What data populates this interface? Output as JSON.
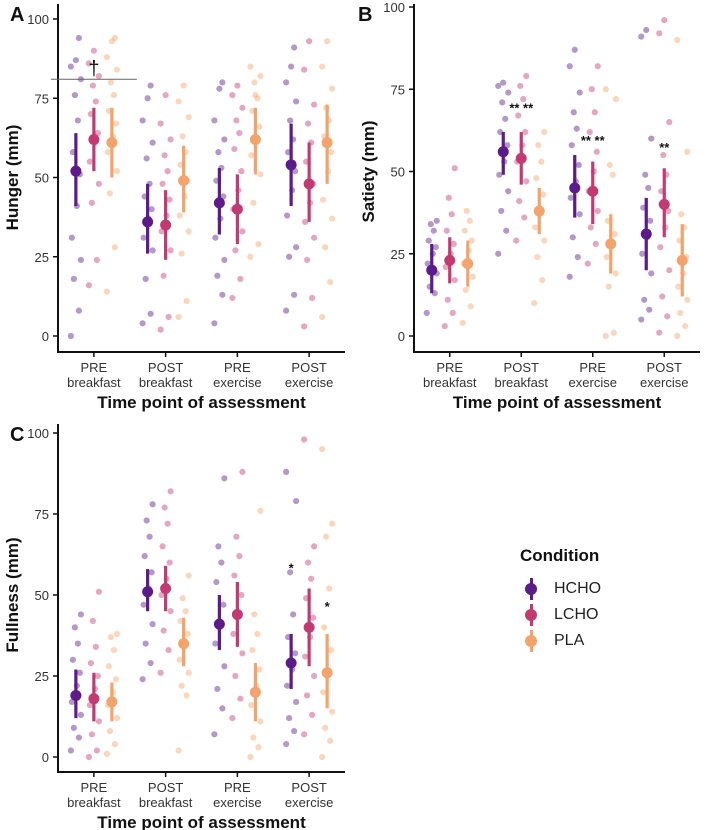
{
  "chart_data": [
    {
      "type": "scatter",
      "panel_label": "A",
      "title": "",
      "xlabel": "Time point of assessment",
      "ylabel": "Hunger (mm)",
      "ylim": [
        0,
        100
      ],
      "yticks": [
        "0",
        "25",
        "50",
        "75",
        "100"
      ],
      "categories": [
        [
          "PRE",
          "breakfast"
        ],
        [
          "POST",
          "breakfast"
        ],
        [
          "PRE",
          "exercise"
        ],
        [
          "POST",
          "exercise"
        ]
      ],
      "series": [
        {
          "name": "HCHO",
          "mean": [
            52,
            36,
            42,
            54
          ],
          "ci_low": [
            41,
            26,
            32,
            41
          ],
          "ci_high": [
            64,
            48,
            53,
            67
          ],
          "points": [
            [
              0,
              8,
              18,
              24,
              31,
              41,
              51,
              58,
              68,
              76,
              81,
              85,
              87,
              94
            ],
            [
              4,
              7,
              18,
              27,
              31,
              37,
              40,
              44,
              48,
              56,
              61,
              68,
              75,
              79
            ],
            [
              4,
              13,
              19,
              24,
              31,
              37,
              44,
              49,
              53,
              58,
              62,
              68,
              78,
              80
            ],
            [
              8,
              13,
              25,
              28,
              38,
              46,
              52,
              58,
              62,
              68,
              74,
              80,
              85,
              91
            ]
          ]
        },
        {
          "name": "LCHO",
          "mean": [
            62,
            35,
            40,
            48
          ],
          "ci_low": [
            52,
            24,
            29,
            36
          ],
          "ci_high": [
            72,
            46,
            51,
            61
          ],
          "points": [
            [
              16,
              24,
              42,
              48,
              55,
              61,
              64,
              70,
              74,
              79,
              82,
              86,
              90
            ],
            [
              2,
              6,
              19,
              27,
              33,
              38,
              43,
              48,
              52,
              57,
              62,
              67,
              76
            ],
            [
              12,
              18,
              27,
              33,
              40,
              46,
              52,
              59,
              64,
              68,
              72,
              76,
              79
            ],
            [
              3,
              12,
              24,
              31,
              36,
              42,
              48,
              55,
              61,
              67,
              73,
              84,
              93
            ]
          ]
        },
        {
          "name": "PLA",
          "mean": [
            61,
            49,
            62,
            61
          ],
          "ci_low": [
            50,
            39,
            51,
            48
          ],
          "ci_high": [
            72,
            60,
            72,
            73
          ],
          "points": [
            [
              14,
              28,
              45,
              52,
              58,
              63,
              67,
              71,
              76,
              80,
              84,
              88,
              93,
              94
            ],
            [
              6,
              11,
              26,
              33,
              38,
              44,
              49,
              54,
              58,
              63,
              69,
              74,
              79
            ],
            [
              25,
              29,
              42,
              51,
              57,
              62,
              66,
              71,
              75,
              80,
              82,
              85,
              76
            ],
            [
              6,
              17,
              28,
              37,
              43,
              52,
              58,
              63,
              68,
              72,
              78,
              85,
              93
            ]
          ]
        }
      ],
      "annotations": [
        {
          "category": 0,
          "text": "†",
          "y": 91
        }
      ]
    },
    {
      "type": "scatter",
      "panel_label": "B",
      "title": "",
      "xlabel": "Time point of assessment",
      "ylabel": "Satiety (mm)",
      "ylim": [
        0,
        100
      ],
      "yticks": [
        "0",
        "25",
        "50",
        "75",
        "100"
      ],
      "categories": [
        [
          "PRE",
          "breakfast"
        ],
        [
          "POST",
          "breakfast"
        ],
        [
          "PRE",
          "exercise"
        ],
        [
          "POST",
          "exercise"
        ]
      ],
      "series": [
        {
          "name": "HCHO",
          "mean": [
            20,
            56,
            45,
            31
          ],
          "ci_low": [
            13,
            49,
            36,
            20
          ],
          "ci_high": [
            28,
            62,
            55,
            42
          ],
          "points": [
            [
              7,
              13,
              15,
              19,
              22,
              25,
              27,
              29,
              32,
              34,
              35
            ],
            [
              25,
              32,
              38,
              44,
              49,
              53,
              58,
              62,
              66,
              71,
              74,
              76,
              77
            ],
            [
              18,
              24,
              30,
              37,
              42,
              47,
              52,
              58,
              63,
              68,
              74,
              82,
              87
            ],
            [
              5,
              8,
              11,
              19,
              25,
              30,
              35,
              39,
              45,
              49,
              60,
              91,
              93
            ]
          ]
        },
        {
          "name": "LCHO",
          "mean": [
            23,
            54,
            44,
            40
          ],
          "ci_low": [
            16,
            46,
            34,
            30
          ],
          "ci_high": [
            30,
            62,
            53,
            51
          ],
          "points": [
            [
              3,
              7,
              11,
              17,
              21,
              25,
              28,
              32,
              37,
              42,
              51
            ],
            [
              29,
              36,
              41,
              47,
              53,
              58,
              62,
              67,
              72,
              76,
              79
            ],
            [
              22,
              28,
              33,
              38,
              44,
              50,
              56,
              62,
              68,
              75,
              82
            ],
            [
              1,
              6,
              12,
              20,
              27,
              33,
              38,
              44,
              49,
              55,
              65,
              92,
              96
            ]
          ]
        },
        {
          "name": "PLA",
          "mean": [
            22,
            38,
            28,
            23
          ],
          "ci_low": [
            15,
            31,
            19,
            12
          ],
          "ci_high": [
            29,
            45,
            37,
            34
          ],
          "points": [
            [
              4,
              9,
              14,
              18,
              22,
              26,
              29,
              32,
              35,
              38
            ],
            [
              10,
              17,
              24,
              29,
              33,
              38,
              43,
              48,
              53,
              58,
              62
            ],
            [
              0,
              1,
              15,
              19,
              24,
              28,
              31,
              35,
              49,
              52,
              72,
              75
            ],
            [
              0,
              3,
              7,
              11,
              15,
              19,
              24,
              29,
              33,
              37,
              56,
              90
            ]
          ]
        }
      ],
      "annotations": [
        {
          "category": 1,
          "text": "** **",
          "y": 68
        },
        {
          "category": 2,
          "text": "** **",
          "y": 58
        },
        {
          "category": 3,
          "text": "**",
          "y": 56
        }
      ]
    },
    {
      "type": "scatter",
      "panel_label": "C",
      "title": "",
      "xlabel": "Time point of assessment",
      "ylabel": "Fullness (mm)",
      "ylim": [
        0,
        100
      ],
      "yticks": [
        "0",
        "25",
        "50",
        "75",
        "100"
      ],
      "categories": [
        [
          "PRE",
          "breakfast"
        ],
        [
          "POST",
          "breakfast"
        ],
        [
          "PRE",
          "exercise"
        ],
        [
          "POST",
          "exercise"
        ]
      ],
      "series": [
        {
          "name": "HCHO",
          "mean": [
            19,
            51,
            41,
            29
          ],
          "ci_low": [
            12,
            45,
            33,
            21
          ],
          "ci_high": [
            27,
            58,
            50,
            38
          ],
          "points": [
            [
              2,
              6,
              9,
              13,
              17,
              22,
              26,
              30,
              35,
              40,
              44
            ],
            [
              24,
              29,
              35,
              41,
              47,
              52,
              57,
              62,
              68,
              73,
              78
            ],
            [
              7,
              15,
              21,
              28,
              35,
              41,
              47,
              54,
              60,
              65,
              86
            ],
            [
              4,
              8,
              12,
              17,
              22,
              27,
              32,
              37,
              44,
              57,
              79,
              88
            ]
          ]
        },
        {
          "name": "LCHO",
          "mean": [
            18,
            52,
            44,
            40
          ],
          "ci_low": [
            11,
            45,
            34,
            28
          ],
          "ci_high": [
            26,
            59,
            54,
            52
          ],
          "points": [
            [
              0,
              2,
              7,
              11,
              16,
              21,
              25,
              29,
              34,
              42,
              51
            ],
            [
              26,
              33,
              39,
              45,
              50,
              55,
              60,
              65,
              72,
              77,
              82
            ],
            [
              12,
              18,
              25,
              32,
              38,
              44,
              50,
              56,
              62,
              68,
              88
            ],
            [
              7,
              13,
              19,
              25,
              31,
              37,
              43,
              49,
              55,
              60,
              65,
              98
            ]
          ]
        },
        {
          "name": "PLA",
          "mean": [
            17,
            35,
            20,
            26
          ],
          "ci_low": [
            11,
            28,
            11,
            15
          ],
          "ci_high": [
            23,
            43,
            29,
            38
          ],
          "points": [
            [
              1,
              4,
              8,
              12,
              16,
              20,
              24,
              28,
              33,
              37,
              38
            ],
            [
              2,
              19,
              22,
              26,
              30,
              34,
              38,
              42,
              45,
              49,
              56
            ],
            [
              0,
              3,
              6,
              11,
              16,
              22,
              27,
              33,
              38,
              44,
              76
            ],
            [
              0,
              5,
              9,
              14,
              20,
              26,
              33,
              40,
              52,
              68,
              72,
              95
            ]
          ]
        }
      ],
      "annotations": [
        {
          "category": 3,
          "series": 0,
          "text": "*",
          "y": 57
        },
        {
          "category": 3,
          "series": 2,
          "text": "*",
          "y": 45
        }
      ]
    }
  ],
  "legend": {
    "title": "Condition",
    "items": [
      {
        "label": "HCHO",
        "color": "#5c1a8a"
      },
      {
        "label": "LCHO",
        "color": "#c33a73"
      },
      {
        "label": "PLA",
        "color": "#f3a36b"
      }
    ]
  },
  "colors": {
    "HCHO": "#5c1a8a",
    "LCHO": "#c33a73",
    "PLA": "#f3a36b"
  }
}
